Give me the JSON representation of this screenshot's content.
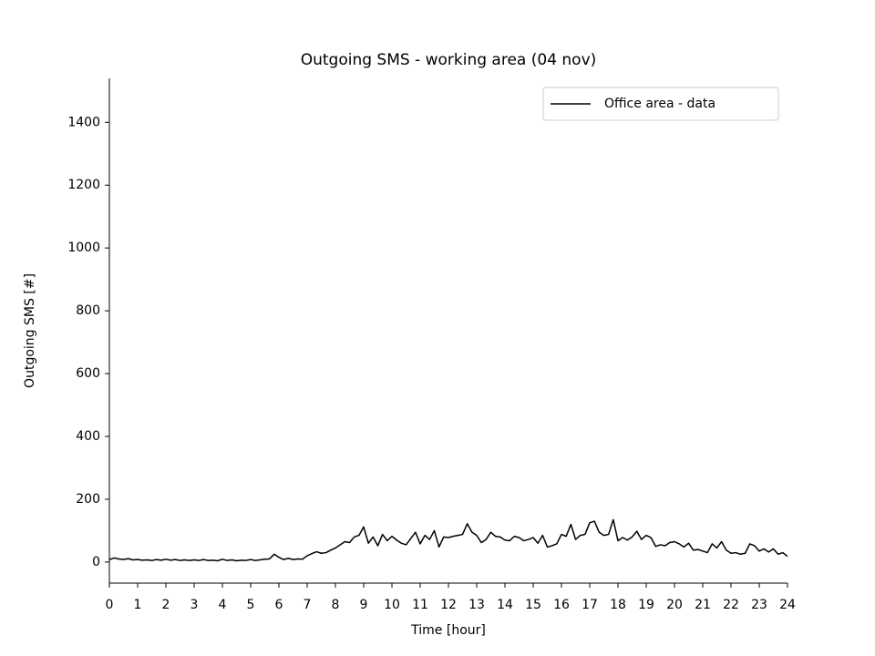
{
  "chart_data": {
    "type": "line",
    "title": "Outgoing SMS - working area (04 nov)",
    "xlabel": "Time [hour]",
    "ylabel": "Outgoing SMS [#]",
    "x": [
      0,
      0.1667,
      0.3333,
      0.5,
      0.6667,
      0.8333,
      1,
      1.1667,
      1.3333,
      1.5,
      1.6667,
      1.8333,
      2,
      2.1667,
      2.3333,
      2.5,
      2.6667,
      2.8333,
      3,
      3.1667,
      3.3333,
      3.5,
      3.6667,
      3.8333,
      4,
      4.1667,
      4.3333,
      4.5,
      4.6667,
      4.8333,
      5,
      5.1667,
      5.3333,
      5.5,
      5.6667,
      5.8333,
      6,
      6.1667,
      6.3333,
      6.5,
      6.6667,
      6.8333,
      7,
      7.1667,
      7.3333,
      7.5,
      7.6667,
      7.8333,
      8,
      8.1667,
      8.3333,
      8.5,
      8.6667,
      8.8333,
      9,
      9.1667,
      9.3333,
      9.5,
      9.6667,
      9.8333,
      10,
      10.1667,
      10.3333,
      10.5,
      10.6667,
      10.8333,
      11,
      11.1667,
      11.3333,
      11.5,
      11.6667,
      11.8333,
      12,
      12.1667,
      12.3333,
      12.5,
      12.6667,
      12.8333,
      13,
      13.1667,
      13.3333,
      13.5,
      13.6667,
      13.8333,
      14,
      14.1667,
      14.3333,
      14.5,
      14.6667,
      14.8333,
      15,
      15.1667,
      15.3333,
      15.5,
      15.6667,
      15.8333,
      16,
      16.1667,
      16.3333,
      16.5,
      16.6667,
      16.8333,
      17,
      17.1667,
      17.3333,
      17.5,
      17.6667,
      17.8333,
      18,
      18.1667,
      18.3333,
      18.5,
      18.6667,
      18.8333,
      19,
      19.1667,
      19.3333,
      19.5,
      19.6667,
      19.8333,
      20,
      20.1667,
      20.3333,
      20.5,
      20.6667,
      20.8333,
      21,
      21.1667,
      21.3333,
      21.5,
      21.6667,
      21.8333,
      22,
      22.1667,
      22.3333,
      22.5,
      22.6667,
      22.8333,
      23,
      23.1667,
      23.3333,
      23.5,
      23.6667,
      23.8333,
      24
    ],
    "series": [
      {
        "name": "Office area - data",
        "color": "#000000",
        "values": [
          8,
          13,
          10,
          8,
          11,
          7,
          8,
          6,
          7,
          5,
          8,
          6,
          9,
          6,
          8,
          5,
          7,
          5,
          7,
          5,
          8,
          5,
          6,
          4,
          9,
          5,
          7,
          4,
          6,
          5,
          8,
          5,
          7,
          9,
          10,
          25,
          15,
          8,
          12,
          8,
          10,
          9,
          20,
          27,
          33,
          28,
          30,
          38,
          45,
          55,
          65,
          62,
          80,
          85,
          112,
          60,
          80,
          52,
          88,
          68,
          82,
          70,
          60,
          55,
          75,
          95,
          58,
          85,
          72,
          100,
          48,
          80,
          78,
          82,
          85,
          88,
          122,
          95,
          85,
          62,
          72,
          95,
          82,
          80,
          70,
          68,
          82,
          78,
          68,
          72,
          78,
          60,
          85,
          48,
          52,
          58,
          88,
          82,
          120,
          72,
          85,
          88,
          125,
          130,
          95,
          85,
          88,
          135,
          68,
          78,
          70,
          80,
          98,
          72,
          85,
          78,
          50,
          55,
          52,
          62,
          65,
          58,
          48,
          60,
          38,
          40,
          35,
          30,
          58,
          45,
          65,
          38,
          28,
          30,
          25,
          28,
          58,
          52,
          35,
          42,
          32,
          42,
          25,
          30,
          18
        ]
      }
    ],
    "xlim": [
      0,
      24
    ],
    "xticks": [
      0,
      1,
      2,
      3,
      4,
      5,
      6,
      7,
      8,
      9,
      10,
      11,
      12,
      13,
      14,
      15,
      16,
      17,
      18,
      19,
      20,
      21,
      22,
      23,
      24
    ],
    "ylim": [
      -67,
      1540
    ],
    "yticks": [
      0,
      200,
      400,
      600,
      800,
      1000,
      1200,
      1400
    ],
    "legend": "upper right"
  }
}
